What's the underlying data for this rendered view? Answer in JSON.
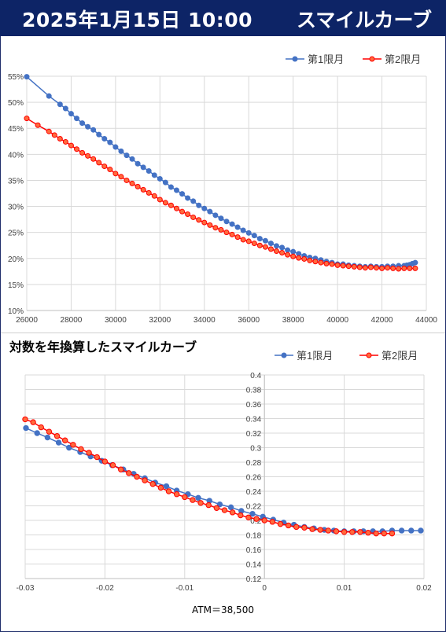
{
  "header": {
    "date": "2025年1月15日 10:00",
    "title": "スマイルカーブ"
  },
  "colors": {
    "header_bg": "#0d2466",
    "series1": "#4472c4",
    "series2": "#ff0000",
    "series2_fill": "#ff6a3d"
  },
  "chart_data": [
    {
      "type": "line",
      "title": "",
      "legend": "top-right",
      "grid": true,
      "xlim": [
        26000,
        44000
      ],
      "ylim": [
        10,
        55
      ],
      "xticks": [
        "26000",
        "28000",
        "30000",
        "32000",
        "34000",
        "36000",
        "38000",
        "40000",
        "42000",
        "44000"
      ],
      "yticks": [
        "10%",
        "15%",
        "20%",
        "25%",
        "30%",
        "35%",
        "40%",
        "45%",
        "50%",
        "55%"
      ],
      "series": [
        {
          "name": "第1限月",
          "x": [
            26000,
            27000,
            27500,
            27750,
            28000,
            28250,
            28500,
            28750,
            29000,
            29250,
            29500,
            29750,
            30000,
            30250,
            30500,
            30750,
            31000,
            31250,
            31500,
            31750,
            32000,
            32250,
            32500,
            32750,
            33000,
            33250,
            33500,
            33750,
            34000,
            34250,
            34500,
            34750,
            35000,
            35250,
            35500,
            35750,
            36000,
            36250,
            36500,
            36750,
            37000,
            37250,
            37500,
            37750,
            38000,
            38250,
            38500,
            38750,
            39000,
            39250,
            39500,
            39750,
            40000,
            40250,
            40500,
            40750,
            41000,
            41250,
            41500,
            41750,
            42000,
            42250,
            42500,
            42750,
            43000,
            43125,
            43250,
            43375,
            43500
          ],
          "y": [
            54.9,
            51.2,
            49.6,
            48.8,
            47.8,
            46.9,
            46.0,
            45.3,
            44.7,
            43.8,
            43.0,
            42.3,
            41.4,
            40.6,
            39.8,
            39.1,
            38.2,
            37.5,
            36.8,
            36.0,
            35.3,
            34.6,
            33.7,
            33.1,
            32.4,
            31.6,
            31.0,
            30.2,
            29.6,
            29.0,
            28.3,
            27.7,
            27.1,
            26.6,
            26.0,
            25.4,
            24.9,
            24.4,
            23.8,
            23.4,
            22.9,
            22.4,
            22.1,
            21.6,
            21.3,
            20.9,
            20.5,
            20.2,
            20.0,
            19.7,
            19.4,
            19.2,
            18.9,
            18.9,
            18.7,
            18.6,
            18.5,
            18.4,
            18.5,
            18.4,
            18.4,
            18.5,
            18.5,
            18.6,
            18.6,
            18.7,
            18.8,
            19.0,
            19.2
          ]
        },
        {
          "name": "第2限月",
          "x": [
            26000,
            26500,
            27000,
            27250,
            27500,
            27750,
            28000,
            28250,
            28500,
            28750,
            29000,
            29250,
            29500,
            29750,
            30000,
            30250,
            30500,
            30750,
            31000,
            31250,
            31500,
            31750,
            32000,
            32250,
            32500,
            32750,
            33000,
            33250,
            33500,
            33750,
            34000,
            34250,
            34500,
            34750,
            35000,
            35250,
            35500,
            35750,
            36000,
            36250,
            36500,
            36750,
            37000,
            37250,
            37500,
            37750,
            38000,
            38250,
            38500,
            38750,
            39000,
            39250,
            39500,
            39750,
            40000,
            40250,
            40500,
            40750,
            41000,
            41250,
            41500,
            41750,
            42000,
            42250,
            42500,
            42750,
            43000,
            43250,
            43500
          ],
          "y": [
            46.9,
            45.6,
            44.4,
            43.7,
            43.0,
            42.4,
            41.7,
            41.0,
            40.3,
            39.7,
            39.1,
            38.4,
            37.7,
            37.1,
            36.3,
            35.7,
            35.0,
            34.4,
            33.8,
            33.2,
            32.6,
            32.0,
            31.3,
            30.7,
            30.2,
            29.6,
            29.0,
            28.5,
            27.9,
            27.4,
            26.9,
            26.4,
            25.9,
            25.5,
            25.0,
            24.6,
            24.1,
            23.6,
            23.3,
            22.9,
            22.5,
            22.2,
            21.8,
            21.4,
            21.1,
            20.7,
            20.4,
            20.1,
            19.9,
            19.6,
            19.4,
            19.2,
            19.0,
            18.9,
            18.7,
            18.6,
            18.5,
            18.4,
            18.3,
            18.2,
            18.3,
            18.2,
            18.1,
            18.2,
            18.1,
            18.0,
            18.1,
            18.1,
            18.1
          ]
        }
      ]
    },
    {
      "type": "line",
      "title": "対数を年換算したスマイルカーブ",
      "legend": "top-right",
      "grid": true,
      "xlim": [
        -0.03,
        0.02
      ],
      "ylim": [
        0.12,
        0.4
      ],
      "xticks": [
        "-0.03",
        "-0.02",
        "-0.01",
        "0",
        "0.01",
        "0.02"
      ],
      "yticks": [
        "0.12",
        "0.14",
        "0.16",
        "0.18",
        "0.2",
        "0.22",
        "0.24",
        "0.26",
        "0.28",
        "0.3",
        "0.32",
        "0.34",
        "0.36",
        "0.38",
        "0.4"
      ],
      "series": [
        {
          "name": "第1限月",
          "x": [
            -0.0299,
            -0.0285,
            -0.0272,
            -0.0258,
            -0.0245,
            -0.0231,
            -0.0218,
            -0.0204,
            -0.0191,
            -0.0177,
            -0.0164,
            -0.015,
            -0.0137,
            -0.0123,
            -0.011,
            -0.0096,
            -0.0083,
            -0.0069,
            -0.0056,
            -0.0042,
            -0.0029,
            -0.0015,
            -0.0002,
            0.0011,
            0.0024,
            0.0037,
            0.005,
            0.0062,
            0.0075,
            0.0087,
            0.01,
            0.0112,
            0.0124,
            0.0136,
            0.0148,
            0.016,
            0.0172,
            0.0184,
            0.0196
          ],
          "y": [
            0.327,
            0.32,
            0.314,
            0.307,
            0.3,
            0.294,
            0.288,
            0.282,
            0.276,
            0.27,
            0.264,
            0.258,
            0.252,
            0.247,
            0.241,
            0.236,
            0.231,
            0.227,
            0.222,
            0.218,
            0.213,
            0.209,
            0.205,
            0.201,
            0.197,
            0.194,
            0.191,
            0.189,
            0.187,
            0.186,
            0.185,
            0.185,
            0.185,
            0.185,
            0.185,
            0.186,
            0.186,
            0.186,
            0.186
          ]
        },
        {
          "name": "第2限月",
          "x": [
            -0.03,
            -0.029,
            -0.028,
            -0.027,
            -0.026,
            -0.025,
            -0.024,
            -0.023,
            -0.022,
            -0.021,
            -0.02,
            -0.019,
            -0.018,
            -0.017,
            -0.016,
            -0.015,
            -0.014,
            -0.013,
            -0.012,
            -0.011,
            -0.01,
            -0.009,
            -0.008,
            -0.007,
            -0.006,
            -0.005,
            -0.004,
            -0.003,
            -0.002,
            -0.001,
            0.0,
            0.001,
            0.002,
            0.003,
            0.004,
            0.005,
            0.006,
            0.007,
            0.008,
            0.009,
            0.01,
            0.011,
            0.012,
            0.013,
            0.014,
            0.015,
            0.016
          ],
          "y": [
            0.339,
            0.335,
            0.328,
            0.322,
            0.316,
            0.31,
            0.304,
            0.298,
            0.293,
            0.287,
            0.281,
            0.276,
            0.27,
            0.265,
            0.26,
            0.255,
            0.25,
            0.245,
            0.24,
            0.236,
            0.232,
            0.228,
            0.224,
            0.221,
            0.217,
            0.214,
            0.211,
            0.207,
            0.204,
            0.202,
            0.2,
            0.198,
            0.195,
            0.193,
            0.191,
            0.19,
            0.188,
            0.187,
            0.186,
            0.185,
            0.184,
            0.184,
            0.184,
            0.183,
            0.182,
            0.182,
            0.182
          ]
        }
      ],
      "annotation": "ATM＝38,500"
    }
  ]
}
